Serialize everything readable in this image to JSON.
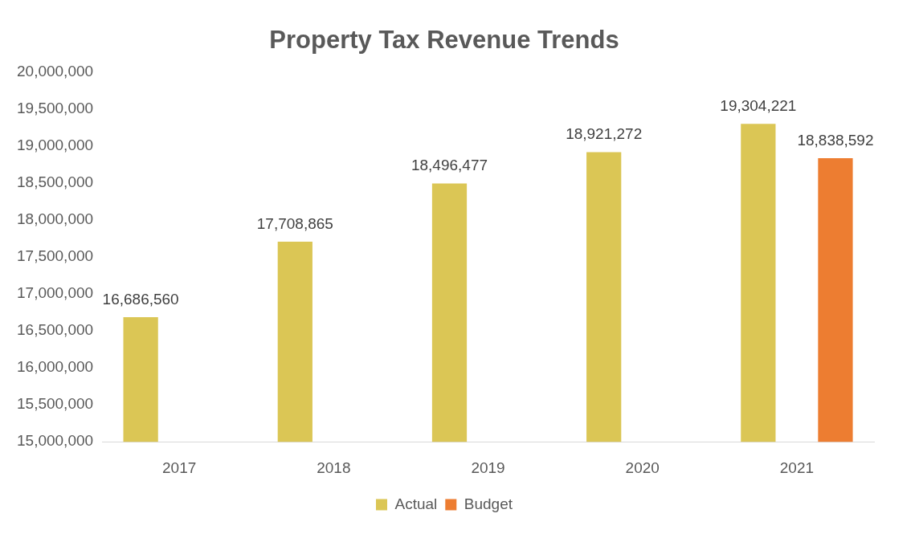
{
  "chart_data": {
    "type": "bar",
    "title": "Property Tax Revenue Trends",
    "categories": [
      "2017",
      "2018",
      "2019",
      "2020",
      "2021"
    ],
    "series": [
      {
        "name": "Actual",
        "color": "#dbc655",
        "values": [
          16686560,
          17708865,
          18496477,
          18921272,
          19304221
        ],
        "value_labels": [
          "16,686,560",
          "17,708,865",
          "18,496,477",
          "18,921,272",
          "19,304,221"
        ]
      },
      {
        "name": "Budget",
        "color": "#ed7d31",
        "values": [
          null,
          null,
          null,
          null,
          18838592
        ],
        "value_labels": [
          null,
          null,
          null,
          null,
          "18,838,592"
        ]
      }
    ],
    "ylim": [
      15000000,
      20000000
    ],
    "yticks": [
      {
        "value": 15000000,
        "label": "15,000,000"
      },
      {
        "value": 15500000,
        "label": "15,500,000"
      },
      {
        "value": 16000000,
        "label": "16,000,000"
      },
      {
        "value": 16500000,
        "label": "16,500,000"
      },
      {
        "value": 17000000,
        "label": "17,000,000"
      },
      {
        "value": 17500000,
        "label": "17,500,000"
      },
      {
        "value": 18000000,
        "label": "18,000,000"
      },
      {
        "value": 18500000,
        "label": "18,500,000"
      },
      {
        "value": 19000000,
        "label": "19,000,000"
      },
      {
        "value": 19500000,
        "label": "19,500,000"
      },
      {
        "value": 20000000,
        "label": "20,000,000"
      }
    ],
    "legend": "bottom"
  }
}
